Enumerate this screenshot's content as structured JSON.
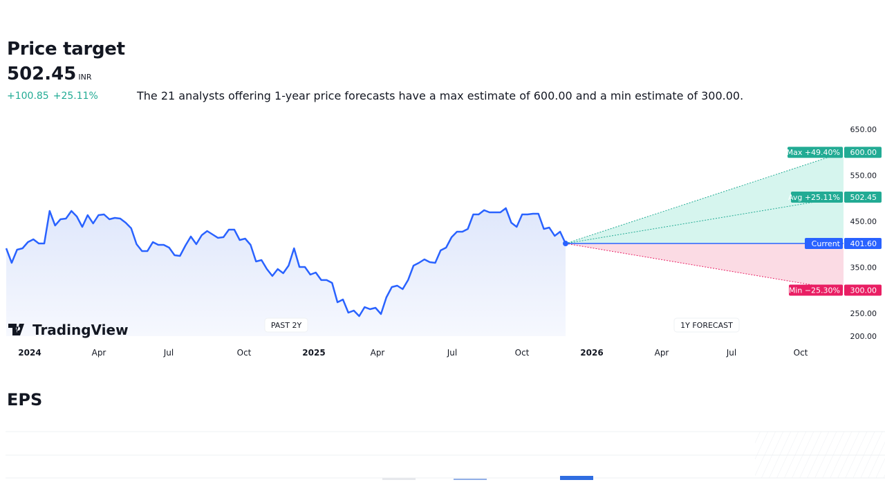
{
  "header": {
    "title": "Price target",
    "price": "502.45",
    "currency": "INR",
    "change_abs": "+100.85",
    "change_pct": "+25.11%",
    "description": "The 21 analysts offering 1-year price forecasts have a max estimate of 600.00 and a min estimate of 300.00."
  },
  "chart_data": {
    "type": "line",
    "title": "",
    "ylim": [
      200,
      650
    ],
    "y_ticks": [
      "650.00",
      "550.00",
      "450.00",
      "350.00",
      "250.00",
      "200.00"
    ],
    "x_ticks": [
      "2024",
      "Apr",
      "Jul",
      "Oct",
      "2025",
      "Apr",
      "Jul",
      "Oct",
      "2026",
      "Apr",
      "Jul",
      "Oct"
    ],
    "x_start": "2023-12-02",
    "x_current": "2025-11-21",
    "x_forecast_end": "2026-11-14",
    "series": [
      {
        "values": [
          391.1,
          359.5,
          388.1,
          391.1,
          404.7,
          410.7,
          401.7,
          401.7,
          472.4,
          440.8,
          454.3,
          455.9,
          472.4,
          460.4,
          437.8,
          463.4,
          445.3,
          463.4,
          464.9,
          454.3,
          457.4,
          455.9,
          446.8,
          434.8,
          400.2,
          385.1,
          385.1,
          404.7,
          398.7,
          398.7,
          392.6,
          376.1,
          374.6,
          397.2,
          416.7,
          400.2,
          419.8,
          428.8,
          421.3,
          413.8,
          415.3,
          431.8,
          431.8,
          409.2,
          412.2,
          398.7,
          362.5,
          365.6,
          346.0,
          331.0,
          346.0,
          337.0,
          353.5,
          391.1,
          350.5,
          350.5,
          334.0,
          338.5,
          322.0,
          322.0,
          315.9,
          273.8,
          279.8,
          251.2,
          255.7,
          243.7,
          263.2,
          258.7,
          261.7,
          248.2,
          284.3,
          306.9,
          309.9,
          302.4,
          322.0,
          353.5,
          359.5,
          367.1,
          361.0,
          359.5,
          386.6,
          392.6,
          415.2,
          427.3,
          427.3,
          433.3,
          464.9,
          464.9,
          474.0,
          469.4,
          469.4,
          469.4,
          478.4,
          446.8,
          437.8,
          464.9,
          464.9,
          466.4,
          466.4,
          433.3,
          436.3,
          418.2,
          427.3,
          401.6
        ]
      }
    ],
    "forecast": {
      "max": {
        "label": "Max +49.40%",
        "value": "600.00",
        "v": 600
      },
      "avg": {
        "label": "Avg +25.11%",
        "value": "502.45",
        "v": 502.45
      },
      "current": {
        "label": "Current",
        "value": "401.60",
        "v": 401.6
      },
      "min": {
        "label": "Min −25.30%",
        "value": "300.00",
        "v": 300
      }
    },
    "period_labels": {
      "past": "PAST 2Y",
      "forecast": "1Y FORECAST"
    },
    "colors": {
      "line": "#2962ff",
      "max": "#22ab94",
      "min": "#e91e63",
      "current": "#2962ff"
    }
  },
  "branding": {
    "logo_text": "TradingView"
  },
  "eps": {
    "title": "EPS"
  }
}
